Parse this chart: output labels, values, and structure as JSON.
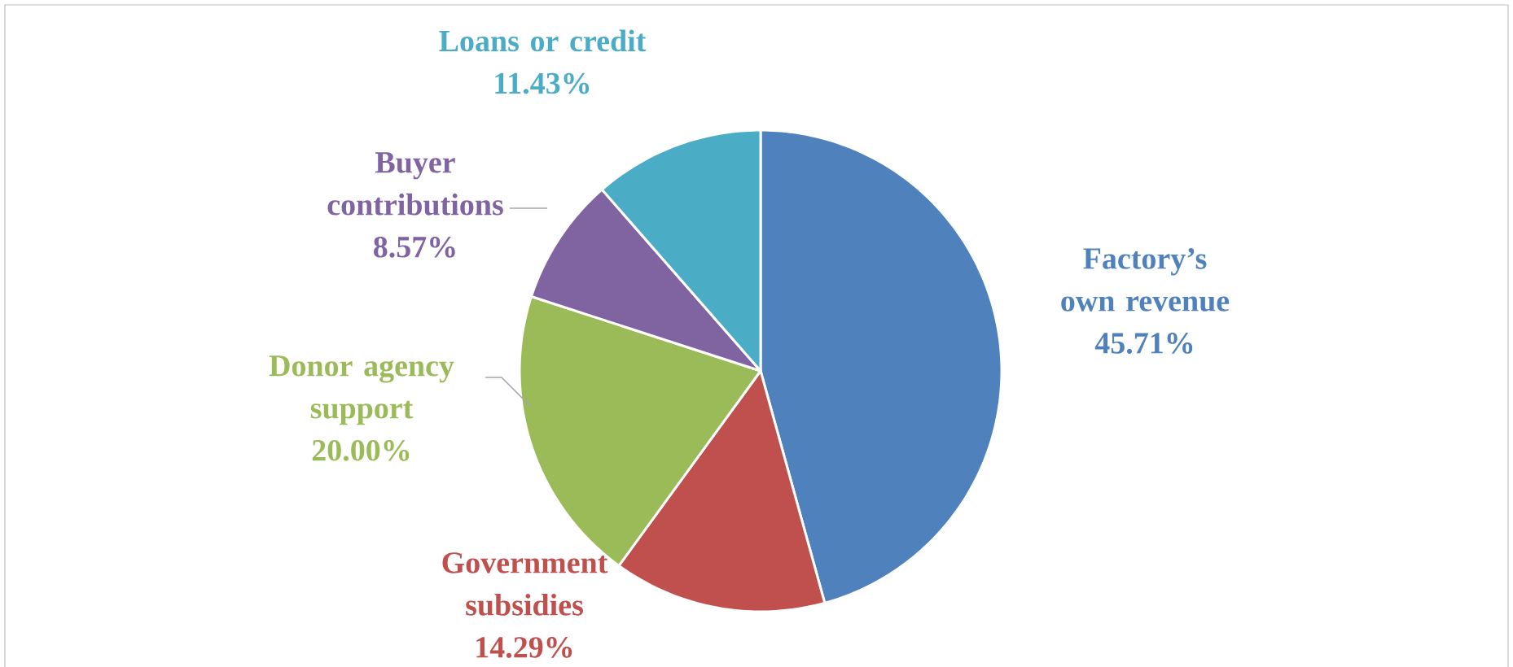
{
  "chart_data": {
    "type": "pie",
    "categories": [
      "Factory’s own revenue",
      "Government subsidies",
      "Donor agency support",
      "Buyer contributions",
      "Loans or credit"
    ],
    "values": [
      45.71,
      14.29,
      20.0,
      8.57,
      11.43
    ],
    "value_labels": [
      "45.71%",
      "14.29%",
      "20.00%",
      "8.57%",
      "11.43%"
    ],
    "colors": [
      "#4f81bd",
      "#c0504d",
      "#9bbb59",
      "#8064a2",
      "#4bacc6"
    ]
  }
}
